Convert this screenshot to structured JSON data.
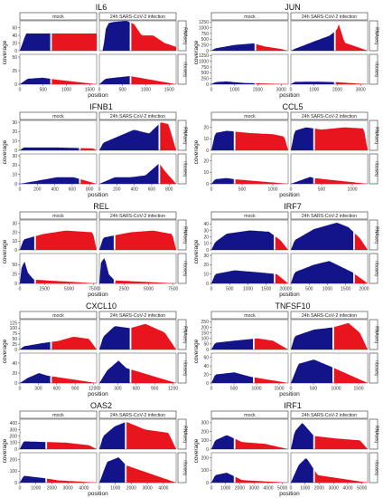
{
  "colors": {
    "first_part": "#14148a",
    "second_part": "#e8141e"
  },
  "strip_labels": {
    "mock": "mock",
    "infected": "24h SARS-CoV-2 infection",
    "rnaseq": "RNAseq",
    "riboseq": "riboseq"
  },
  "axis_labels": {
    "x": "position",
    "y": "coverage"
  },
  "chart_data": [
    {
      "type": "area",
      "title": "IL6",
      "x_ticks": [
        0,
        500,
        1000,
        1500
      ],
      "xmax": 1650,
      "split": 0.4,
      "rna": {
        "y_ticks": [
          0,
          20,
          40,
          60
        ],
        "ymax": 78,
        "mock": [
          [
            0,
            0
          ],
          [
            0.08,
            45
          ],
          [
            1,
            45
          ]
        ],
        "infected": [
          [
            0.05,
            0
          ],
          [
            0.08,
            55
          ],
          [
            0.12,
            72
          ],
          [
            0.18,
            75
          ],
          [
            0.25,
            76
          ],
          [
            0.35,
            78
          ],
          [
            0.45,
            70
          ],
          [
            0.55,
            40
          ],
          [
            0.7,
            40
          ],
          [
            0.85,
            20
          ],
          [
            1,
            10
          ]
        ]
      },
      "ribo": {
        "y_ticks": [
          0,
          25,
          50
        ],
        "ymax": 55,
        "mock": [
          [
            0.1,
            10
          ],
          [
            0.3,
            12
          ],
          [
            0.5,
            8
          ]
        ],
        "infected": [
          [
            0.08,
            10
          ],
          [
            0.2,
            12
          ],
          [
            0.4,
            15
          ],
          [
            0.6,
            10
          ]
        ]
      }
    },
    {
      "type": "area",
      "title": "JUN",
      "x_ticks": [
        0,
        1000,
        2000,
        3000
      ],
      "xmax": 3300,
      "split": 0.58,
      "rna": {
        "y_ticks": [
          0,
          250,
          500,
          750,
          1000,
          1250
        ],
        "ymax": 1300,
        "mock": [
          [
            0.05,
            100
          ],
          [
            0.3,
            250
          ],
          [
            0.55,
            320
          ],
          [
            0.7,
            180
          ],
          [
            0.9,
            80
          ]
        ],
        "infected": [
          [
            0.05,
            80
          ],
          [
            0.3,
            400
          ],
          [
            0.5,
            650
          ],
          [
            0.6,
            900
          ],
          [
            0.62,
            1200
          ],
          [
            0.7,
            350
          ],
          [
            0.9,
            120
          ]
        ]
      },
      "ribo": {
        "y_ticks": [
          0,
          250,
          500,
          750,
          1000,
          1250
        ],
        "ymax": 1300,
        "mock": [
          [
            0.05,
            90
          ],
          [
            0.2,
            120
          ],
          [
            0.4,
            60
          ]
        ],
        "infected": [
          [
            0.05,
            100
          ],
          [
            0.3,
            110
          ],
          [
            0.6,
            90
          ]
        ]
      }
    },
    {
      "type": "area",
      "title": "IFNB1",
      "x_ticks": [
        0,
        200,
        400,
        600,
        800
      ],
      "xmax": 880,
      "split": 0.78,
      "rna": {
        "y_ticks": [
          0,
          10,
          20,
          30
        ],
        "ymax": 32,
        "mock": [
          [
            0.05,
            3
          ],
          [
            0.5,
            3
          ],
          [
            0.95,
            2
          ]
        ],
        "infected": [
          [
            0.05,
            8
          ],
          [
            0.25,
            15
          ],
          [
            0.45,
            22
          ],
          [
            0.65,
            18
          ],
          [
            0.8,
            30
          ],
          [
            0.9,
            28
          ]
        ]
      },
      "ribo": {
        "y_ticks": [
          0,
          10,
          20,
          30
        ],
        "ymax": 32,
        "mock": [
          [
            0.48,
            7
          ],
          [
            0.7,
            7
          ]
        ],
        "infected": [
          [
            0.2,
            7
          ],
          [
            0.4,
            7
          ],
          [
            0.6,
            9
          ],
          [
            0.78,
            22
          ],
          [
            0.85,
            14
          ]
        ]
      }
    },
    {
      "type": "area",
      "title": "CCL5",
      "x_ticks": [
        0,
        500,
        1000
      ],
      "xmax": 1250,
      "split": 0.3,
      "rna": {
        "y_ticks": [
          0,
          10,
          20
        ],
        "ymax": 26,
        "mock": [
          [
            0.05,
            15
          ],
          [
            0.2,
            17
          ],
          [
            0.5,
            15
          ],
          [
            0.8,
            14
          ],
          [
            0.95,
            12
          ]
        ],
        "infected": [
          [
            0.05,
            17
          ],
          [
            0.2,
            20
          ],
          [
            0.4,
            18
          ],
          [
            0.7,
            20
          ],
          [
            0.95,
            19
          ]
        ]
      },
      "ribo": {
        "y_ticks": [
          0,
          10,
          20
        ],
        "ymax": 26,
        "mock": [
          [
            0.05,
            4
          ],
          [
            0.2,
            5
          ],
          [
            0.3,
            4
          ]
        ],
        "infected": [
          [
            0.25,
            6
          ],
          [
            0.3,
            5
          ]
        ]
      }
    },
    {
      "type": "area",
      "title": "REL",
      "x_ticks": [
        0,
        2500,
        5000,
        7500
      ],
      "xmax": 7800,
      "split": 0.2,
      "rna": {
        "y_ticks": [
          0,
          10,
          20,
          30
        ],
        "ymax": 34,
        "mock": [
          [
            0.05,
            12
          ],
          [
            0.3,
            18
          ],
          [
            0.6,
            22
          ],
          [
            0.95,
            20
          ]
        ],
        "infected": [
          [
            0.05,
            14
          ],
          [
            0.4,
            20
          ],
          [
            0.7,
            22
          ],
          [
            0.95,
            18
          ]
        ]
      },
      "ribo": {
        "y_ticks": [
          0,
          25,
          50
        ],
        "ymax": 80,
        "mock": [
          [
            0.02,
            40
          ],
          [
            0.06,
            60
          ],
          [
            0.1,
            30
          ],
          [
            0.18,
            10
          ]
        ],
        "infected": [
          [
            0.02,
            55
          ],
          [
            0.07,
            70
          ],
          [
            0.12,
            25
          ],
          [
            0.2,
            8
          ]
        ]
      }
    },
    {
      "type": "area",
      "title": "IRF7",
      "x_ticks": [
        0,
        500,
        1000,
        1500,
        2000
      ],
      "xmax": 2100,
      "split": 0.82,
      "rna": {
        "y_ticks": [
          0,
          10,
          20,
          30,
          40
        ],
        "ymax": 46,
        "mock": [
          [
            0.05,
            12
          ],
          [
            0.2,
            25
          ],
          [
            0.5,
            30
          ],
          [
            0.75,
            28
          ],
          [
            0.9,
            15
          ]
        ],
        "infected": [
          [
            0.05,
            15
          ],
          [
            0.3,
            32
          ],
          [
            0.6,
            42
          ],
          [
            0.75,
            35
          ],
          [
            0.9,
            18
          ]
        ]
      },
      "ribo": {
        "y_ticks": [
          0,
          10,
          20,
          30
        ],
        "ymax": 32,
        "mock": [
          [
            0.05,
            10
          ],
          [
            0.3,
            14
          ],
          [
            0.6,
            12
          ],
          [
            0.85,
            10
          ]
        ],
        "infected": [
          [
            0.05,
            12
          ],
          [
            0.3,
            20
          ],
          [
            0.5,
            24
          ],
          [
            0.8,
            12
          ]
        ]
      }
    },
    {
      "type": "area",
      "title": "CXCL10",
      "x_ticks": [
        0,
        300,
        600,
        900,
        1200
      ],
      "xmax": 1250,
      "split": 0.4,
      "rna": {
        "y_ticks": [
          0,
          25,
          50,
          75,
          100,
          125
        ],
        "ymax": 140,
        "mock": [
          [
            0.05,
            15
          ],
          [
            0.3,
            30
          ],
          [
            0.5,
            40
          ],
          [
            0.7,
            60
          ],
          [
            0.9,
            50
          ]
        ],
        "infected": [
          [
            0.05,
            60
          ],
          [
            0.2,
            110
          ],
          [
            0.4,
            100
          ],
          [
            0.6,
            120
          ],
          [
            0.85,
            80
          ]
        ]
      },
      "ribo": {
        "y_ticks": [
          0,
          20,
          40
        ],
        "ymax": 60,
        "mock": [
          [
            0.1,
            10
          ],
          [
            0.25,
            20
          ],
          [
            0.35,
            15
          ]
        ],
        "infected": [
          [
            0.1,
            25
          ],
          [
            0.25,
            45
          ],
          [
            0.35,
            30
          ]
        ]
      }
    },
    {
      "type": "area",
      "title": "TNFSF10",
      "x_ticks": [
        0,
        500,
        1000,
        1500
      ],
      "xmax": 1700,
      "split": 0.55,
      "rna": {
        "y_ticks": [
          0,
          50,
          100,
          150,
          200,
          250
        ],
        "ymax": 270,
        "mock": [
          [
            0.05,
            60
          ],
          [
            0.3,
            80
          ],
          [
            0.6,
            100
          ],
          [
            0.8,
            80
          ]
        ],
        "infected": [
          [
            0.05,
            120
          ],
          [
            0.3,
            180
          ],
          [
            0.55,
            200
          ],
          [
            0.75,
            240
          ],
          [
            0.9,
            150
          ]
        ]
      },
      "ribo": {
        "y_ticks": [
          0,
          20,
          40,
          60
        ],
        "ymax": 70,
        "mock": [
          [
            0.05,
            20
          ],
          [
            0.3,
            25
          ],
          [
            0.5,
            15
          ]
        ],
        "infected": [
          [
            0.1,
            45
          ],
          [
            0.3,
            55
          ],
          [
            0.5,
            40
          ]
        ]
      }
    },
    {
      "type": "area",
      "title": "OAS2",
      "x_ticks": [
        0,
        1000,
        2000,
        3000,
        4000
      ],
      "xmax": 4800,
      "split": 0.35,
      "rna": {
        "y_ticks": [
          0,
          100,
          200,
          300,
          400
        ],
        "ymax": 460,
        "mock": [
          [
            0.05,
            120
          ],
          [
            0.3,
            110
          ],
          [
            0.6,
            100
          ],
          [
            0.9,
            60
          ]
        ],
        "infected": [
          [
            0.05,
            200
          ],
          [
            0.2,
            350
          ],
          [
            0.35,
            420
          ],
          [
            0.6,
            300
          ],
          [
            0.9,
            250
          ]
        ]
      },
      "ribo": {
        "y_ticks": [
          0,
          100,
          200
        ],
        "ymax": 260,
        "mock": [
          [
            0.05,
            60
          ],
          [
            0.3,
            40
          ],
          [
            0.5,
            20
          ]
        ],
        "infected": [
          [
            0.1,
            180
          ],
          [
            0.25,
            220
          ],
          [
            0.35,
            150
          ]
        ]
      }
    },
    {
      "type": "area",
      "title": "IRF1",
      "x_ticks": [
        0,
        1000,
        2000,
        3000,
        4000,
        5000
      ],
      "xmax": 5400,
      "split": 0.3,
      "rna": {
        "y_ticks": [
          0,
          100,
          200,
          300
        ],
        "ymax": 340,
        "mock": [
          [
            0.05,
            100
          ],
          [
            0.2,
            160
          ],
          [
            0.4,
            80
          ],
          [
            0.7,
            60
          ]
        ],
        "infected": [
          [
            0.05,
            200
          ],
          [
            0.15,
            300
          ],
          [
            0.3,
            150
          ],
          [
            0.6,
            120
          ],
          [
            0.9,
            100
          ]
        ]
      },
      "ribo": {
        "y_ticks": [
          0,
          100,
          200
        ],
        "ymax": 240,
        "mock": [
          [
            0.05,
            60
          ],
          [
            0.2,
            80
          ],
          [
            0.4,
            20
          ]
        ],
        "infected": [
          [
            0.1,
            140
          ],
          [
            0.2,
            200
          ],
          [
            0.35,
            60
          ]
        ]
      }
    }
  ]
}
